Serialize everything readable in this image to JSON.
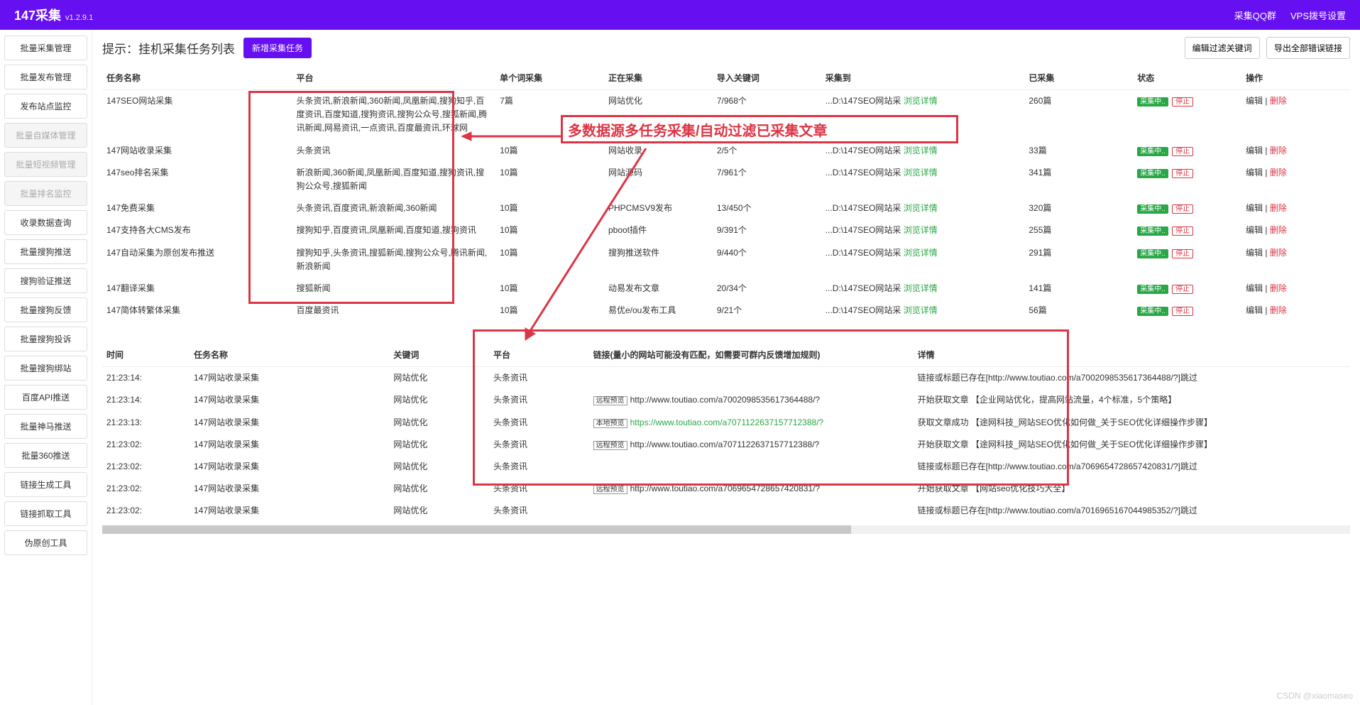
{
  "header": {
    "title": "147采集",
    "version": "v1.2.9.1",
    "links": {
      "qq": "采集QQ群",
      "vps": "VPS拨号设置"
    }
  },
  "sidebar": {
    "items": [
      {
        "label": "批量采集管理",
        "disabled": false
      },
      {
        "label": "批量发布管理",
        "disabled": false
      },
      {
        "label": "发布站点监控",
        "disabled": false
      },
      {
        "label": "批量自媒体管理",
        "disabled": true
      },
      {
        "label": "批量短视频管理",
        "disabled": true
      },
      {
        "label": "批量排名监控",
        "disabled": true
      },
      {
        "label": "收录数据查询",
        "disabled": false
      },
      {
        "label": "批量搜狗推送",
        "disabled": false
      },
      {
        "label": "搜狗验证推送",
        "disabled": false
      },
      {
        "label": "批量搜狗反馈",
        "disabled": false
      },
      {
        "label": "批量搜狗投诉",
        "disabled": false
      },
      {
        "label": "批量搜狗绑站",
        "disabled": false
      },
      {
        "label": "百度API推送",
        "disabled": false
      },
      {
        "label": "批量神马推送",
        "disabled": false
      },
      {
        "label": "批量360推送",
        "disabled": false
      },
      {
        "label": "链接生成工具",
        "disabled": false
      },
      {
        "label": "链接抓取工具",
        "disabled": false
      },
      {
        "label": "伪原创工具",
        "disabled": false
      }
    ]
  },
  "pageTitle": "提示：挂机采集任务列表",
  "buttons": {
    "add": "新增采集任务",
    "filter": "编辑过滤关键词",
    "export": "导出全部错误链接"
  },
  "taskTable": {
    "headers": {
      "name": "任务名称",
      "platform": "平台",
      "single": "单个词采集",
      "collecting": "正在采集",
      "keywords": "导入关键词",
      "dest": "采集到",
      "collected": "已采集",
      "status": "状态",
      "op": "操作"
    },
    "browseDetail": "浏览详情",
    "statusBadge": "采集中..",
    "stop": "停止",
    "edit": "编辑",
    "delete": "删除",
    "rows": [
      {
        "name": "147SEO网站采集",
        "platform": "头条资讯,新浪新闻,360新闻,凤凰新闻,搜狗知乎,百度资讯,百度知道,搜狗资讯,搜狗公众号,搜狐新闻,腾讯新闻,网易资讯,一点资讯,百度最资讯,环球网",
        "single": "7篇",
        "collecting": "网站优化",
        "keywords": "7/968个",
        "dest": "...D:\\147SEO网站采",
        "collected": "260篇"
      },
      {
        "name": "147网站收录采集",
        "platform": "头条资讯",
        "single": "10篇",
        "collecting": "网站收录",
        "keywords": "2/5个",
        "dest": "...D:\\147SEO网站采",
        "collected": "33篇"
      },
      {
        "name": "147seo排名采集",
        "platform": "新浪新闻,360新闻,凤凰新闻,百度知道,搜狗资讯,搜狗公众号,搜狐新闻",
        "single": "10篇",
        "collecting": "网站源码",
        "keywords": "7/961个",
        "dest": "...D:\\147SEO网站采",
        "collected": "341篇"
      },
      {
        "name": "147免费采集",
        "platform": "头条资讯,百度资讯,新浪新闻,360新闻",
        "single": "10篇",
        "collecting": "PHPCMSV9发布",
        "keywords": "13/450个",
        "dest": "...D:\\147SEO网站采",
        "collected": "320篇"
      },
      {
        "name": "147支持各大CMS发布",
        "platform": "搜狗知乎,百度资讯,凤凰新闻,百度知道,搜狗资讯",
        "single": "10篇",
        "collecting": "pboot插件",
        "keywords": "9/391个",
        "dest": "...D:\\147SEO网站采",
        "collected": "255篇"
      },
      {
        "name": "147自动采集为原创发布推送",
        "platform": "搜狗知乎,头条资讯,搜狐新闻,搜狗公众号,腾讯新闻,新浪新闻",
        "single": "10篇",
        "collecting": "搜狗推送软件",
        "keywords": "9/440个",
        "dest": "...D:\\147SEO网站采",
        "collected": "291篇"
      },
      {
        "name": "147翻译采集",
        "platform": "搜狐新闻",
        "single": "10篇",
        "collecting": "动易发布文章",
        "keywords": "20/34个",
        "dest": "...D:\\147SEO网站采",
        "collected": "141篇"
      },
      {
        "name": "147简体转繁体采集",
        "platform": "百度最资讯",
        "single": "10篇",
        "collecting": "易优e/ou发布工具",
        "keywords": "9/21个",
        "dest": "...D:\\147SEO网站采",
        "collected": "56篇"
      }
    ]
  },
  "annotation": {
    "text": "多数据源多任务采集/自动过滤已采集文章"
  },
  "logTable": {
    "headers": {
      "time": "时间",
      "task": "任务名称",
      "keyword": "关键词",
      "platform": "平台",
      "link": "链接(量小的网站可能没有匹配，如需要可群内反馈增加规则)",
      "detail": "详情"
    },
    "tagRemote": "远程预览",
    "tagLocal": "本地预览",
    "rows": [
      {
        "time": "21:23:14:",
        "task": "147网站收录采集",
        "keyword": "网站优化",
        "platform": "头条资讯",
        "link": "",
        "tag": "",
        "detail": "链接或标题已存在[http://www.toutiao.com/a7002098535617364488/?]跳过"
      },
      {
        "time": "21:23:14:",
        "task": "147网站收录采集",
        "keyword": "网站优化",
        "platform": "头条资讯",
        "link": "http://www.toutiao.com/a7002098535617364488/?",
        "tag": "remote",
        "detail": "开始获取文章 【企业网站优化，提高网站流量，4个标准，5个策略】"
      },
      {
        "time": "21:23:13:",
        "task": "147网站收录采集",
        "keyword": "网站优化",
        "platform": "头条资讯",
        "link": "https://www.toutiao.com/a7071122637157712388/?",
        "tag": "local",
        "detail": "获取文章成功 【途网科技_网站SEO优化如何做_关于SEO优化详细操作步骤】"
      },
      {
        "time": "21:23:02:",
        "task": "147网站收录采集",
        "keyword": "网站优化",
        "platform": "头条资讯",
        "link": "http://www.toutiao.com/a7071122637157712388/?",
        "tag": "remote",
        "detail": "开始获取文章 【途网科技_网站SEO优化如何做_关于SEO优化详细操作步骤】"
      },
      {
        "time": "21:23:02:",
        "task": "147网站收录采集",
        "keyword": "网站优化",
        "platform": "头条资讯",
        "link": "",
        "tag": "",
        "detail": "链接或标题已存在[http://www.toutiao.com/a7069654728657420831/?]跳过"
      },
      {
        "time": "21:23:02:",
        "task": "147网站收录采集",
        "keyword": "网站优化",
        "platform": "头条资讯",
        "link": "http://www.toutiao.com/a7069654728657420831/?",
        "tag": "remote",
        "detail": "开始获取文章 【网站seo优化技巧大全】"
      },
      {
        "time": "21:23:02:",
        "task": "147网站收录采集",
        "keyword": "网站优化",
        "platform": "头条资讯",
        "link": "",
        "tag": "",
        "detail": "链接或标题已存在[http://www.toutiao.com/a7016965167044985352/?]跳过"
      }
    ]
  },
  "watermark": "CSDN @xiaomaseo"
}
